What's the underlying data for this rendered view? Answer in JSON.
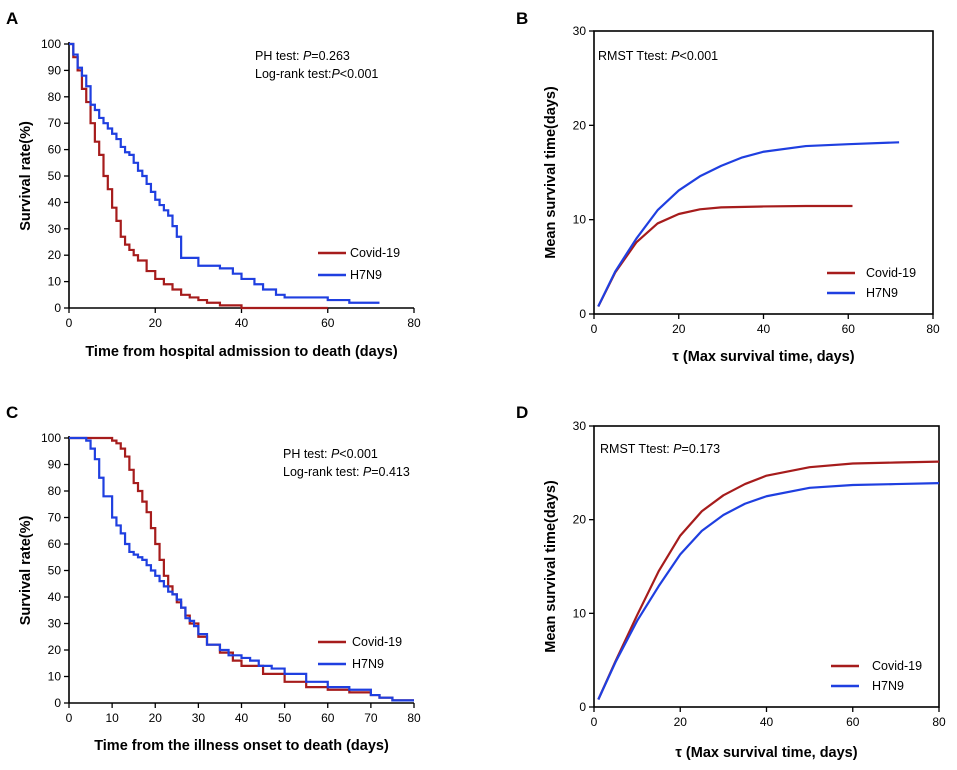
{
  "colors": {
    "covid": "#a61c1c",
    "h7n9": "#1f3fe0"
  },
  "chart_data": [
    {
      "panel": "A",
      "type": "line",
      "step": true,
      "xlabel": "Time from hospital admission to death (days)",
      "ylabel": "Survival rate(%)",
      "xlim": [
        0,
        80
      ],
      "ylim": [
        0,
        100
      ],
      "xticks": [
        0,
        20,
        40,
        60,
        80
      ],
      "yticks": [
        0,
        10,
        20,
        30,
        40,
        50,
        60,
        70,
        80,
        90,
        100
      ],
      "annotations": [
        {
          "prefix": "PH test: ",
          "p": "P",
          "suffix": "=0.263"
        },
        {
          "prefix": "Log-rank test:",
          "p": "P",
          "suffix": "<0.001"
        }
      ],
      "legend": {
        "placement": "bottom-right",
        "entries": [
          "Covid-19",
          "H7N9"
        ]
      },
      "series": [
        {
          "name": "Covid-19",
          "color_key": "covid",
          "x": [
            0,
            1,
            2,
            3,
            4,
            5,
            6,
            7,
            8,
            9,
            10,
            11,
            12,
            13,
            14,
            15,
            16,
            18,
            20,
            22,
            24,
            26,
            28,
            30,
            32,
            35,
            38,
            40,
            45,
            50,
            55,
            60
          ],
          "y": [
            100,
            95,
            90,
            83,
            78,
            70,
            63,
            58,
            50,
            45,
            38,
            33,
            27,
            24,
            22,
            20,
            18,
            14,
            11,
            9,
            7,
            5,
            4,
            3,
            2,
            1,
            1,
            0,
            0,
            0,
            0,
            0
          ]
        },
        {
          "name": "H7N9",
          "color_key": "h7n9",
          "x": [
            0,
            1,
            2,
            3,
            4,
            5,
            6,
            7,
            8,
            9,
            10,
            11,
            12,
            13,
            14,
            15,
            16,
            17,
            18,
            19,
            20,
            21,
            22,
            23,
            24,
            25,
            26,
            28,
            30,
            32,
            35,
            38,
            40,
            43,
            45,
            48,
            50,
            55,
            60,
            65,
            72
          ],
          "y": [
            100,
            96,
            91,
            88,
            84,
            77,
            75,
            72,
            70,
            68,
            66,
            64,
            61,
            59,
            58,
            55,
            52,
            50,
            47,
            44,
            41,
            39,
            37,
            35,
            31,
            27,
            19,
            19,
            16,
            16,
            15,
            13,
            11,
            9,
            7,
            5,
            4,
            4,
            3,
            2,
            2
          ]
        }
      ]
    },
    {
      "panel": "B",
      "type": "line",
      "step": false,
      "xlabel": "τ (Max survival time, days)",
      "ylabel": "Mean survival time(days)",
      "xlim": [
        0,
        80
      ],
      "ylim": [
        0,
        30
      ],
      "xticks": [
        0,
        20,
        40,
        60,
        80
      ],
      "yticks": [
        0,
        10,
        20,
        30
      ],
      "annotations": [
        {
          "prefix": "RMST Ttest: ",
          "p": "P",
          "suffix": "<0.001"
        }
      ],
      "legend": {
        "placement": "bottom-right",
        "entries": [
          "Covid-19",
          "H7N9"
        ]
      },
      "series": [
        {
          "name": "Covid-19",
          "color_key": "covid",
          "x": [
            1,
            5,
            10,
            15,
            20,
            25,
            30,
            40,
            50,
            61
          ],
          "y": [
            0.8,
            4.4,
            7.6,
            9.6,
            10.6,
            11.1,
            11.3,
            11.4,
            11.45,
            11.45
          ]
        },
        {
          "name": "H7N9",
          "color_key": "h7n9",
          "x": [
            1,
            5,
            10,
            15,
            20,
            25,
            30,
            35,
            40,
            50,
            60,
            72
          ],
          "y": [
            0.8,
            4.5,
            8.0,
            11.0,
            13.1,
            14.6,
            15.7,
            16.6,
            17.2,
            17.8,
            18.0,
            18.2
          ]
        }
      ]
    },
    {
      "panel": "C",
      "type": "line",
      "step": true,
      "xlabel": "Time from the illness onset to death (days)",
      "ylabel": "Survival rate(%)",
      "xlim": [
        0,
        80
      ],
      "ylim": [
        0,
        100
      ],
      "xticks": [
        0,
        10,
        20,
        30,
        40,
        50,
        60,
        70,
        80
      ],
      "yticks": [
        0,
        10,
        20,
        30,
        40,
        50,
        60,
        70,
        80,
        90,
        100
      ],
      "annotations": [
        {
          "prefix": "PH test: ",
          "p": "P",
          "suffix": "<0.001"
        },
        {
          "prefix": "Log-rank test: ",
          "p": "P",
          "suffix": "=0.413"
        }
      ],
      "legend": {
        "placement": "bottom-right",
        "entries": [
          "Covid-19",
          "H7N9"
        ]
      },
      "series": [
        {
          "name": "Covid-19",
          "color_key": "covid",
          "x": [
            0,
            7,
            9,
            10,
            11,
            12,
            13,
            14,
            15,
            16,
            17,
            18,
            19,
            20,
            21,
            22,
            23,
            24,
            25,
            26,
            27,
            28,
            30,
            32,
            35,
            38,
            40,
            45,
            50,
            55,
            60,
            65,
            70,
            72,
            75,
            80
          ],
          "y": [
            100,
            100,
            100,
            99,
            98,
            96,
            93,
            88,
            83,
            80,
            76,
            72,
            66,
            60,
            54,
            48,
            44,
            41,
            38,
            36,
            33,
            30,
            25,
            22,
            19,
            16,
            14,
            11,
            8,
            6,
            5,
            4,
            3,
            2,
            1,
            1
          ]
        },
        {
          "name": "H7N9",
          "color_key": "h7n9",
          "x": [
            0,
            3,
            4,
            5,
            6,
            7,
            8,
            9,
            10,
            11,
            12,
            13,
            14,
            15,
            16,
            17,
            18,
            19,
            20,
            21,
            22,
            23,
            24,
            25,
            26,
            27,
            28,
            29,
            30,
            32,
            35,
            37,
            40,
            42,
            44,
            47,
            50,
            55,
            60,
            65,
            70,
            72,
            75,
            80
          ],
          "y": [
            100,
            100,
            99,
            96,
            92,
            85,
            78,
            78,
            70,
            67,
            64,
            60,
            57,
            56,
            55,
            54,
            52,
            50,
            48,
            46,
            44,
            42,
            41,
            39,
            36,
            32,
            31,
            29,
            26,
            22,
            20,
            18,
            17,
            16,
            14,
            13,
            11,
            8,
            6,
            5,
            3,
            2,
            1,
            1
          ]
        }
      ]
    },
    {
      "panel": "D",
      "type": "line",
      "step": false,
      "xlabel": "τ (Max survival time, days)",
      "ylabel": "Mean survival time(days)",
      "xlim": [
        0,
        80
      ],
      "ylim": [
        0,
        30
      ],
      "xticks": [
        0,
        20,
        40,
        60,
        80
      ],
      "yticks": [
        0,
        10,
        20,
        30
      ],
      "annotations": [
        {
          "prefix": "RMST Ttest: ",
          "p": "P",
          "suffix": "=0.173"
        }
      ],
      "legend": {
        "placement": "bottom-right",
        "entries": [
          "Covid-19",
          "H7N9"
        ]
      },
      "series": [
        {
          "name": "Covid-19",
          "color_key": "covid",
          "x": [
            1,
            5,
            10,
            15,
            20,
            25,
            30,
            35,
            40,
            50,
            60,
            70,
            80
          ],
          "y": [
            0.8,
            4.9,
            9.8,
            14.5,
            18.3,
            20.9,
            22.6,
            23.8,
            24.7,
            25.6,
            26.0,
            26.1,
            26.2
          ]
        },
        {
          "name": "H7N9",
          "color_key": "h7n9",
          "x": [
            1,
            5,
            10,
            15,
            20,
            25,
            30,
            35,
            40,
            50,
            60,
            70,
            80
          ],
          "y": [
            0.8,
            4.8,
            9.2,
            12.9,
            16.3,
            18.8,
            20.5,
            21.7,
            22.5,
            23.4,
            23.7,
            23.8,
            23.9
          ]
        }
      ]
    }
  ]
}
